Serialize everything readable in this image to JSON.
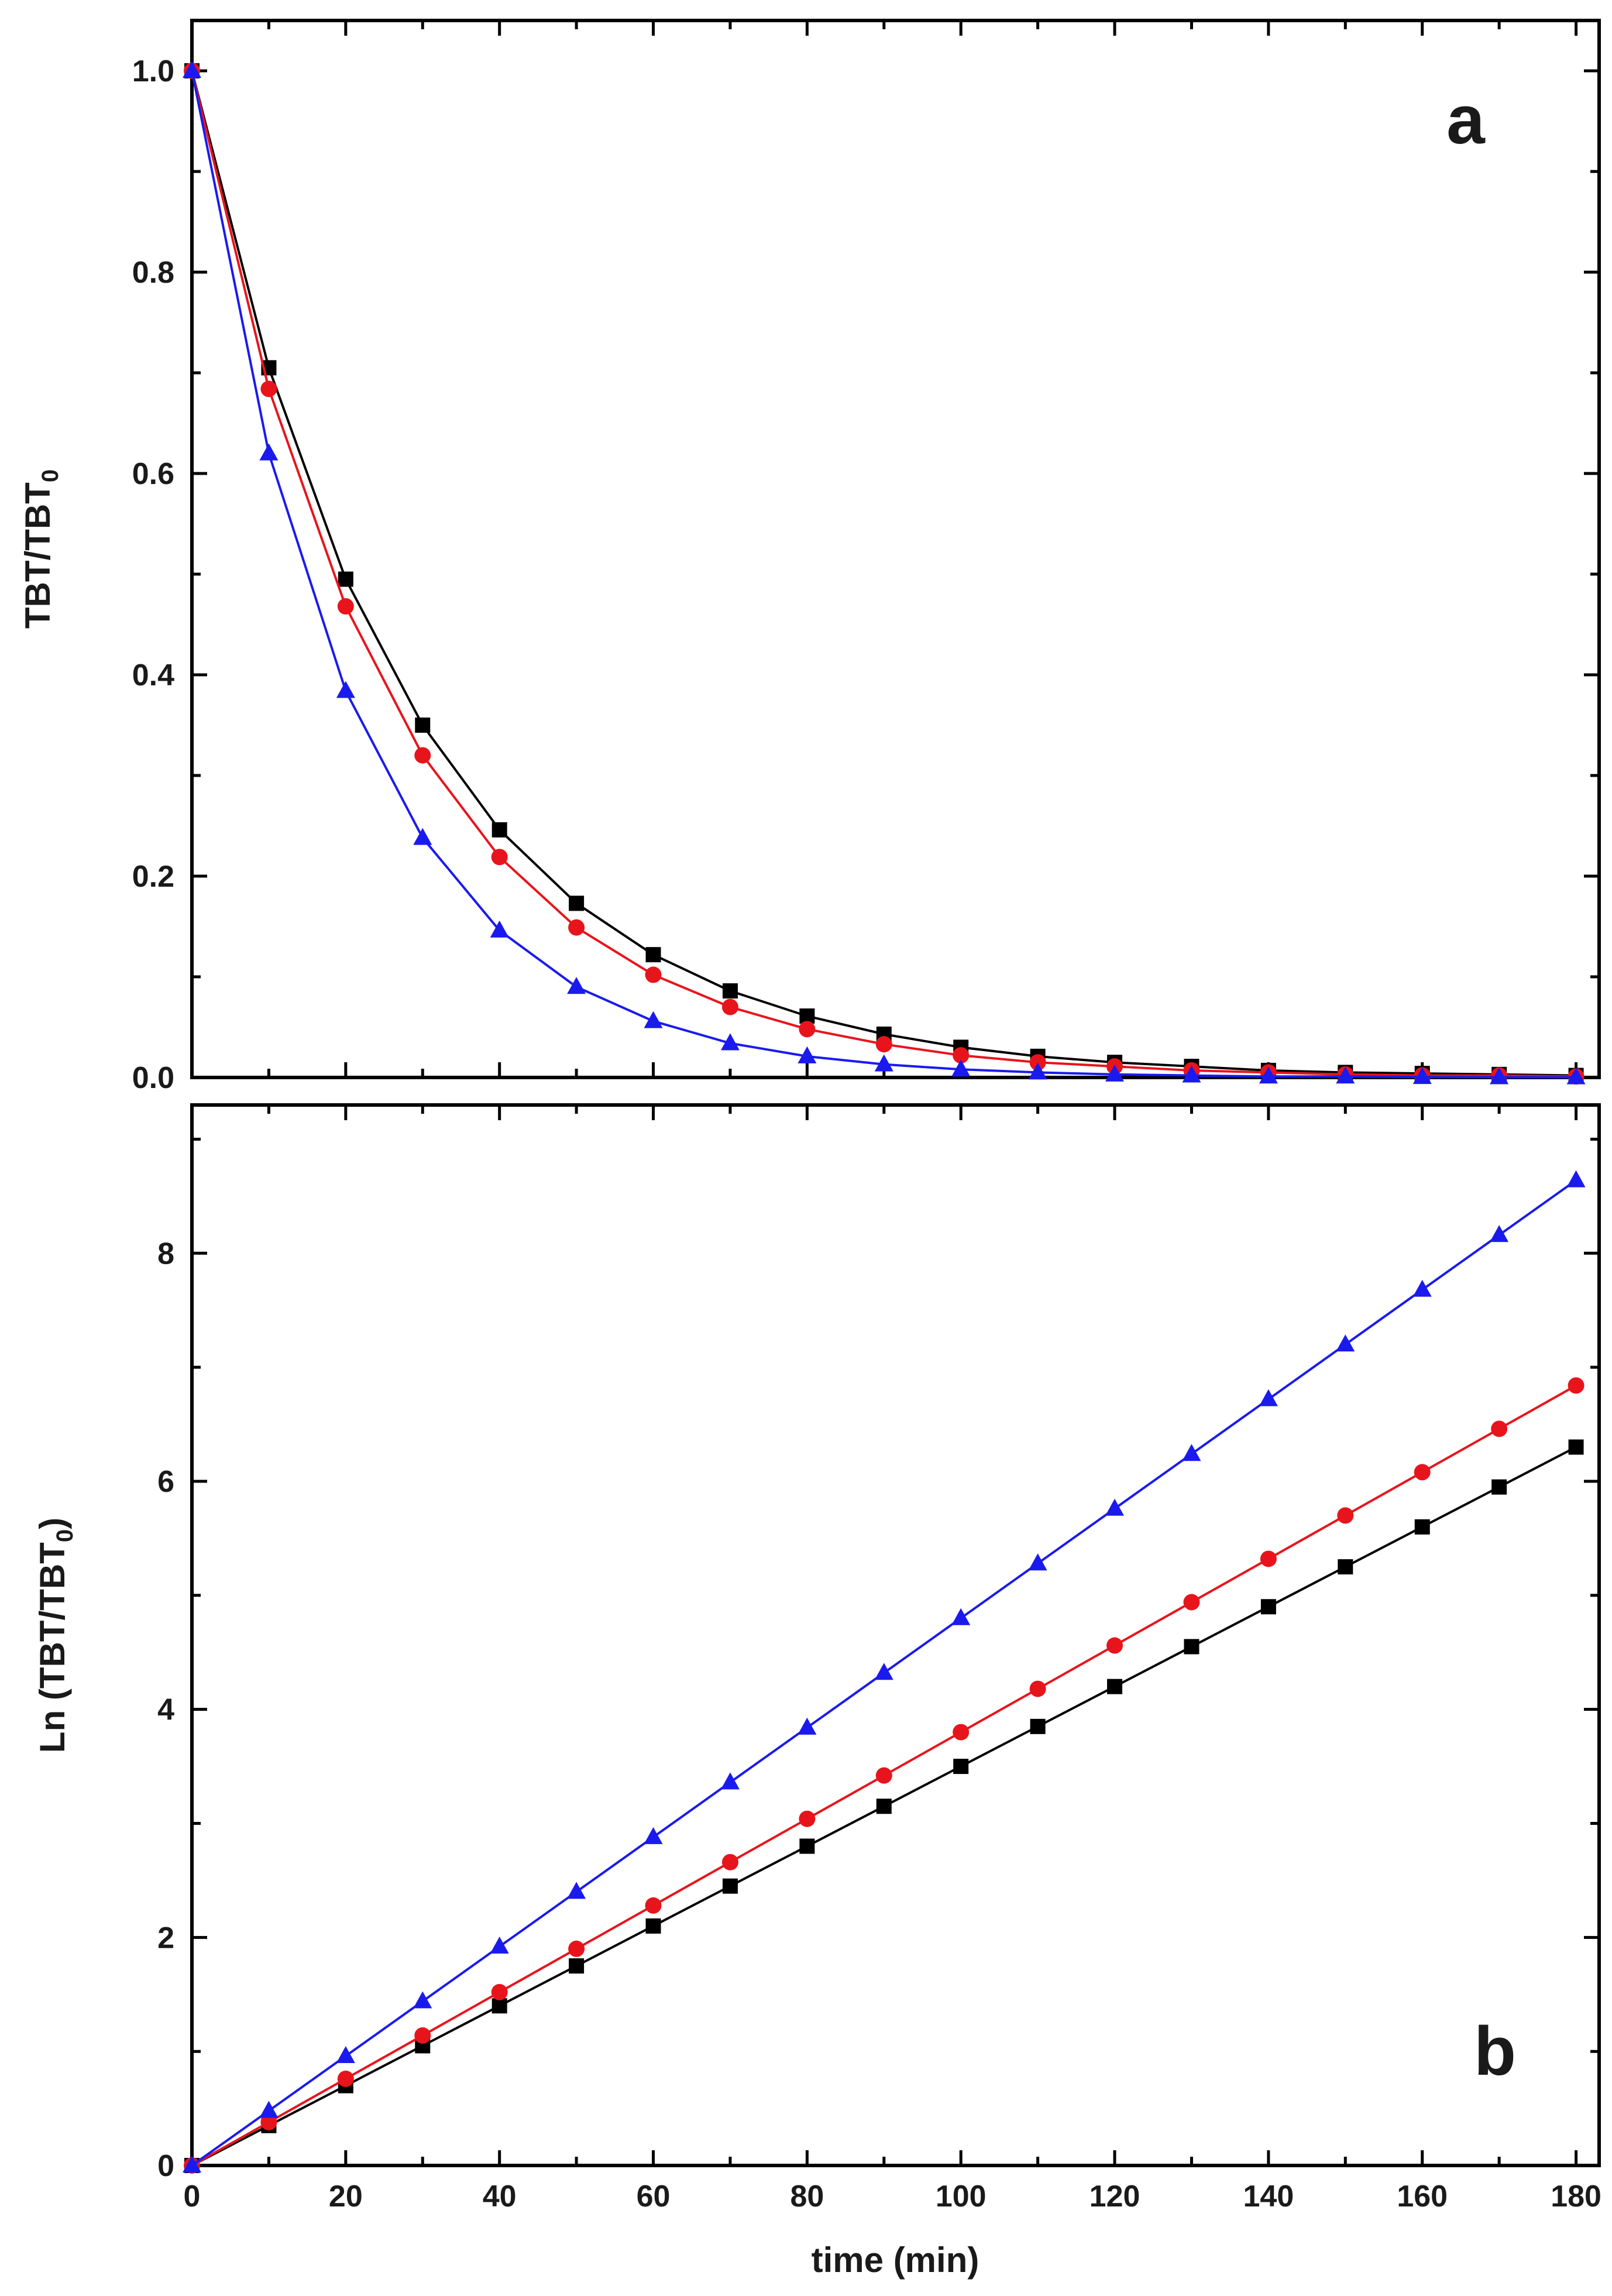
{
  "chart_data": [
    {
      "panel": "a",
      "type": "line",
      "panel_label": "a",
      "ylabel": "TBT/TBT",
      "ylabel_sub": "0",
      "xlabel": "",
      "xlim": [
        0,
        183
      ],
      "ylim": [
        0,
        1.05
      ],
      "x_ticks": [
        0,
        20,
        40,
        60,
        80,
        100,
        120,
        140,
        160,
        180
      ],
      "y_ticks": [
        0.0,
        0.2,
        0.4,
        0.6,
        0.8,
        1.0
      ],
      "y_tick_labels": [
        "0.0",
        "0.2",
        "0.4",
        "0.6",
        "0.8",
        "1.0"
      ],
      "x": [
        0,
        10,
        20,
        30,
        40,
        50,
        60,
        70,
        80,
        90,
        100,
        110,
        120,
        130,
        140,
        150,
        160,
        170,
        180
      ],
      "series": [
        {
          "name": "black",
          "marker": "square",
          "color": "#000000",
          "values": [
            1.0,
            0.705,
            0.495,
            0.35,
            0.246,
            0.173,
            0.122,
            0.086,
            0.061,
            0.043,
            0.03,
            0.021,
            0.015,
            0.011,
            0.007,
            0.005,
            0.004,
            0.003,
            0.002
          ]
        },
        {
          "name": "red",
          "marker": "circle",
          "color": "#e8141c",
          "values": [
            1.0,
            0.684,
            0.468,
            0.32,
            0.219,
            0.149,
            0.102,
            0.07,
            0.048,
            0.033,
            0.022,
            0.015,
            0.011,
            0.007,
            0.005,
            0.003,
            0.002,
            0.002,
            0.001
          ]
        },
        {
          "name": "blue",
          "marker": "triangle",
          "color": "#1a1aef",
          "values": [
            1.0,
            0.62,
            0.384,
            0.238,
            0.146,
            0.09,
            0.056,
            0.034,
            0.021,
            0.013,
            0.008,
            0.005,
            0.003,
            0.002,
            0.001,
            0.001,
            0.0005,
            0.0003,
            0.0002
          ]
        }
      ]
    },
    {
      "panel": "b",
      "type": "line",
      "panel_label": "b",
      "ylabel": "Ln (TBT/TBT",
      "ylabel_sub": "0",
      "ylabel_close": ")",
      "xlabel": "time (min)",
      "xlim": [
        0,
        183
      ],
      "ylim": [
        0,
        9.3
      ],
      "x_ticks": [
        0,
        20,
        40,
        60,
        80,
        100,
        120,
        140,
        160,
        180
      ],
      "x_tick_labels": [
        "0",
        "20",
        "40",
        "60",
        "80",
        "100",
        "120",
        "140",
        "160",
        "180"
      ],
      "y_ticks": [
        0,
        2,
        4,
        6,
        8
      ],
      "y_tick_labels": [
        "0",
        "2",
        "4",
        "6",
        "8"
      ],
      "x": [
        0,
        10,
        20,
        30,
        40,
        50,
        60,
        70,
        80,
        90,
        100,
        110,
        120,
        130,
        140,
        150,
        160,
        170,
        180
      ],
      "series": [
        {
          "name": "black",
          "marker": "square",
          "color": "#000000",
          "values": [
            0,
            0.35,
            0.7,
            1.05,
            1.4,
            1.75,
            2.1,
            2.45,
            2.8,
            3.15,
            3.5,
            3.85,
            4.2,
            4.55,
            4.9,
            5.25,
            5.6,
            5.95,
            6.3
          ]
        },
        {
          "name": "red",
          "marker": "circle",
          "color": "#e8141c",
          "values": [
            0,
            0.38,
            0.76,
            1.14,
            1.52,
            1.9,
            2.28,
            2.66,
            3.04,
            3.42,
            3.8,
            4.18,
            4.56,
            4.94,
            5.32,
            5.7,
            6.08,
            6.46,
            6.84
          ]
        },
        {
          "name": "blue",
          "marker": "triangle",
          "color": "#1a1aef",
          "values": [
            0,
            0.48,
            0.96,
            1.44,
            1.92,
            2.4,
            2.88,
            3.36,
            3.84,
            4.32,
            4.8,
            5.28,
            5.76,
            6.24,
            6.72,
            7.2,
            7.68,
            8.16,
            8.64
          ]
        }
      ]
    }
  ]
}
